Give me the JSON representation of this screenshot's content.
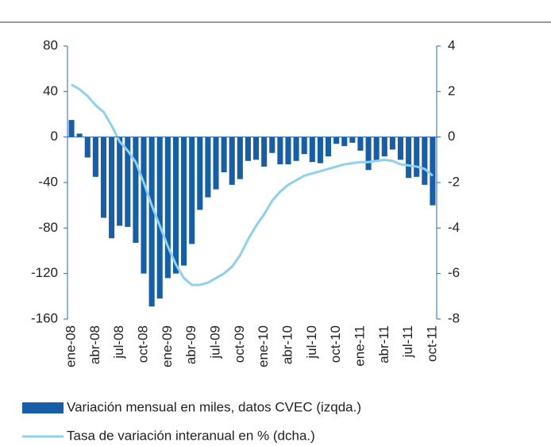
{
  "chart_data": {
    "type": "bar_line",
    "categories": [
      "ene-08",
      null,
      null,
      "abr-08",
      null,
      null,
      "jul-08",
      null,
      null,
      "oct-08",
      null,
      null,
      "ene-09",
      null,
      null,
      "abr-09",
      null,
      null,
      "jul-09",
      null,
      null,
      "oct-09",
      null,
      null,
      "ene-10",
      null,
      null,
      "abr-10",
      null,
      null,
      "jul-10",
      null,
      null,
      "oct-10",
      null,
      null,
      "ene-11",
      null,
      null,
      "abr-11",
      null,
      null,
      "jul-11",
      null,
      null,
      "oct-11"
    ],
    "series": [
      {
        "name": "Variación mensual en miles, datos CVEC (izqda.)",
        "type": "bar",
        "color": "#165ea8",
        "values": [
          15,
          3,
          -18,
          -35,
          -71,
          -89,
          -78,
          -79,
          -93,
          -120,
          -149,
          -142,
          -124,
          -120,
          -113,
          -94,
          -64,
          -53,
          -46,
          -31,
          -42,
          -37,
          -21,
          -20,
          -26,
          -14,
          -24,
          -24,
          -21,
          -15,
          -22,
          -23,
          -17,
          -6,
          -8,
          -5,
          -12,
          -29,
          -21,
          -17,
          -11,
          -20,
          -36,
          -35,
          -42,
          -60
        ]
      },
      {
        "name": "Tasa de variación interanual en % (dcha.)",
        "type": "line",
        "axis": "y2",
        "color": "#8dd0ef",
        "values": [
          2.3,
          2.1,
          1.8,
          1.4,
          1.1,
          0.5,
          -0.2,
          -0.6,
          -1.1,
          -2.0,
          -3.0,
          -3.9,
          -4.8,
          -5.6,
          -6.2,
          -6.5,
          -6.5,
          -6.4,
          -6.2,
          -6.0,
          -5.7,
          -5.2,
          -4.5,
          -3.9,
          -3.4,
          -2.8,
          -2.4,
          -2.1,
          -1.9,
          -1.7,
          -1.6,
          -1.5,
          -1.4,
          -1.3,
          -1.2,
          -1.15,
          -1.1,
          -1.1,
          -1.05,
          -1.0,
          -1.05,
          -1.2,
          -1.25,
          -1.3,
          -1.4,
          -1.7
        ]
      }
    ],
    "ylim": [
      -160,
      80
    ],
    "yticks": [
      -160,
      -120,
      -80,
      -40,
      0,
      40,
      80
    ],
    "y2lim": [
      -8,
      4
    ],
    "y2ticks": [
      -8,
      -6,
      -4,
      -2,
      0,
      2,
      4
    ]
  }
}
